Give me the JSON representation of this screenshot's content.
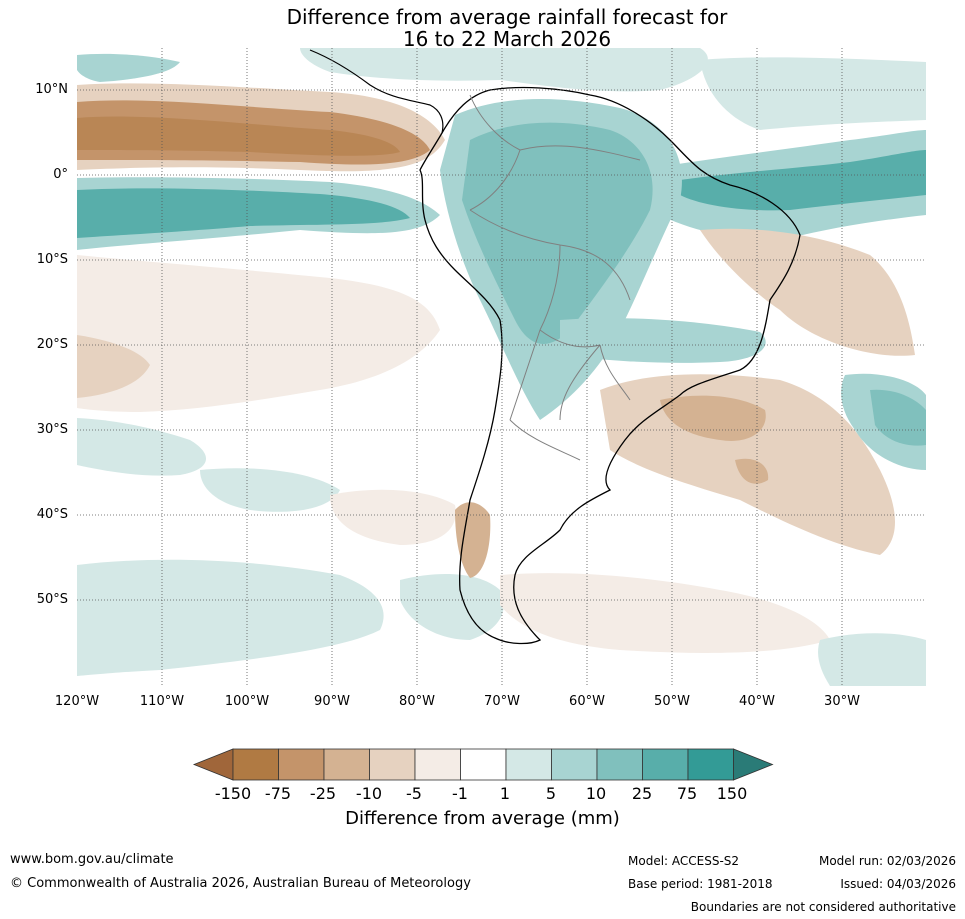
{
  "title": {
    "line1": "Difference from average rainfall forecast for",
    "line2": "16 to 22 March 2026"
  },
  "map": {
    "lat_labels": [
      "10°N",
      "0°",
      "10°S",
      "20°S",
      "30°S",
      "40°S",
      "50°S"
    ],
    "lon_labels": [
      "120°W",
      "110°W",
      "100°W",
      "90°W",
      "80°W",
      "70°W",
      "60°W",
      "50°W",
      "40°W",
      "30°W"
    ]
  },
  "colorbar": {
    "title": "Difference from average (mm)",
    "tick_labels": [
      "-150",
      "-75",
      "-25",
      "-10",
      "-5",
      "-1",
      "1",
      "5",
      "10",
      "25",
      "75",
      "150"
    ],
    "colors": [
      "#a0663a",
      "#b07a43",
      "#c4946a",
      "#d4b292",
      "#e6d2c0",
      "#f4ece6",
      "#ffffff",
      "#d4e8e6",
      "#a8d4d2",
      "#80c0bd",
      "#58aeaa",
      "#339b96",
      "#2a7b77"
    ]
  },
  "footer": {
    "website": "www.bom.gov.au/climate",
    "copyright": "© Commonwealth of Australia 2026, Australian Bureau of Meteorology",
    "model": "Model: ACCESS-S2",
    "base_period": "Base period: 1981-2018",
    "model_run": "Model run: 02/03/2026",
    "issued": "Issued: 04/03/2026",
    "disclaimer": "Boundaries are not considered authoritative"
  }
}
